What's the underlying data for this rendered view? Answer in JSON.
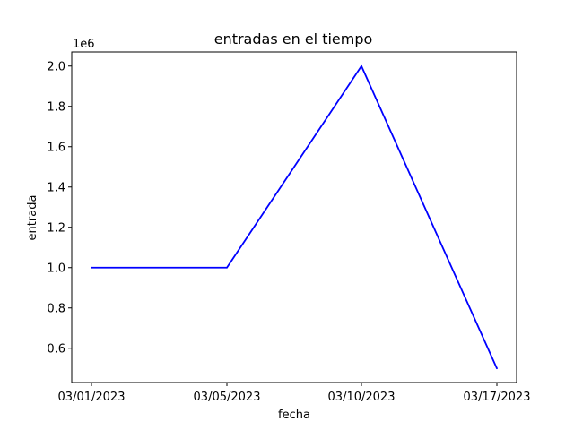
{
  "chart_data": {
    "type": "line",
    "title": "entradas en el tiempo",
    "xlabel": "fecha",
    "ylabel": "entrada",
    "y_offset_text": "1e6",
    "categories": [
      "03/01/2023",
      "03/05/2023",
      "03/10/2023",
      "03/17/2023"
    ],
    "series": [
      {
        "color": "#0000ff",
        "values": [
          1000000,
          1000000,
          2000000,
          500000
        ]
      }
    ],
    "ylim": [
      430000,
      2070000
    ],
    "y_ticks": [
      600000,
      800000,
      1000000,
      1200000,
      1400000,
      1600000,
      1800000,
      2000000
    ],
    "y_tick_labels": [
      "0.6",
      "0.8",
      "1.0",
      "1.2",
      "1.4",
      "1.6",
      "1.8",
      "2.0"
    ],
    "grid": false,
    "legend": "none"
  }
}
